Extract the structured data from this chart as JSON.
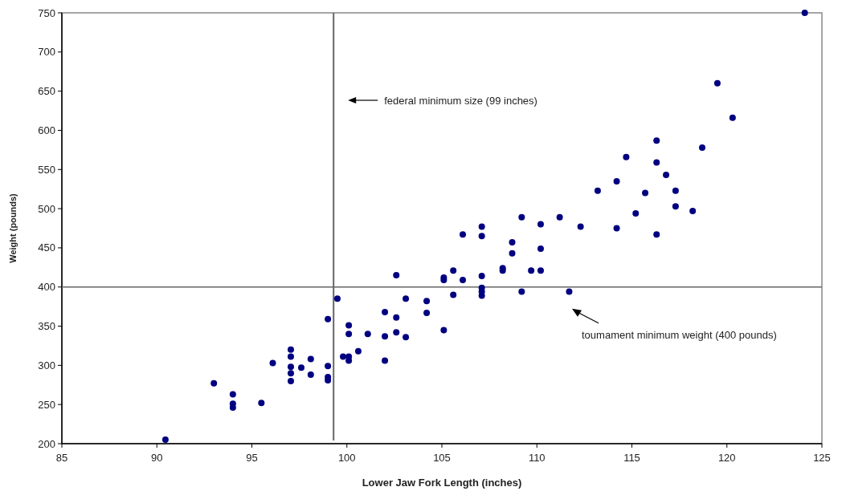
{
  "chart_data": {
    "type": "scatter",
    "xlabel": "Lower Jaw Fork Length (inches)",
    "ylabel": "Weight (pounds)",
    "xlim": [
      85,
      125
    ],
    "xticks": [
      85,
      90,
      95,
      100,
      105,
      110,
      115,
      120,
      125
    ],
    "ylim": [
      200,
      750
    ],
    "yticks": [
      200,
      250,
      300,
      350,
      400,
      450,
      500,
      550,
      600,
      650,
      700,
      750
    ],
    "grid": false,
    "marker": "circle",
    "series": [
      {
        "color": "#000080",
        "x": [
          90.45,
          93.0,
          94.0,
          94.0,
          94.0,
          95.5,
          96.1,
          97.05,
          97.05,
          97.05,
          97.05,
          97.05,
          97.6,
          98.1,
          98.1,
          99.0,
          99.0,
          99.0,
          99.0,
          99.5,
          99.8,
          100.1,
          100.1,
          100.1,
          100.1,
          100.6,
          101.1,
          102.0,
          102.0,
          102.0,
          102.6,
          102.6,
          102.6,
          103.1,
          103.1,
          104.2,
          104.2,
          105.1,
          105.1,
          105.1,
          105.6,
          105.6,
          106.1,
          106.1,
          107.1,
          107.1,
          107.1,
          107.1,
          107.1,
          107.1,
          108.2,
          108.2,
          108.7,
          108.7,
          109.2,
          109.2,
          109.7,
          110.2,
          110.2,
          110.2,
          111.2,
          111.7,
          112.3,
          113.2,
          114.2,
          114.2,
          114.7,
          115.2,
          115.7,
          116.3,
          116.3,
          116.3,
          116.8,
          117.3,
          117.3,
          118.2,
          118.7,
          119.5,
          120.3,
          124.1
        ],
        "values": [
          205,
          277,
          263,
          251,
          246,
          252,
          303,
          320,
          311,
          298,
          290,
          280,
          297,
          308,
          288,
          359,
          299,
          285,
          281,
          385,
          311,
          351,
          340,
          311,
          306,
          318,
          340,
          368,
          337,
          306,
          415,
          361,
          342,
          385,
          336,
          382,
          367,
          345,
          412,
          409,
          421,
          390,
          467,
          409,
          477,
          465,
          414,
          399,
          394,
          389,
          424,
          421,
          457,
          443,
          489,
          394,
          421,
          480,
          449,
          421,
          489,
          394,
          477,
          523,
          535,
          475,
          566,
          494,
          520,
          587,
          559,
          467,
          543,
          523,
          503,
          497,
          578,
          660,
          616,
          750
        ]
      }
    ],
    "ref_lines": [
      {
        "axis": "x",
        "value": 99.3
      },
      {
        "axis": "y",
        "value": 400
      }
    ],
    "annotations": [
      "federal minimum size (99 inches)",
      "toumament minimum weight (400 pounds)"
    ]
  }
}
